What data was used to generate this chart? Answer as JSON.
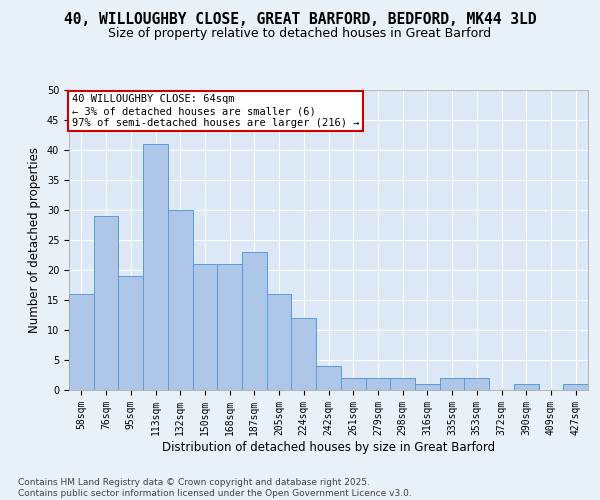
{
  "title_line1": "40, WILLOUGHBY CLOSE, GREAT BARFORD, BEDFORD, MK44 3LD",
  "title_line2": "Size of property relative to detached houses in Great Barford",
  "xlabel": "Distribution of detached houses by size in Great Barford",
  "ylabel": "Number of detached properties",
  "categories": [
    "58sqm",
    "76sqm",
    "95sqm",
    "113sqm",
    "132sqm",
    "150sqm",
    "168sqm",
    "187sqm",
    "205sqm",
    "224sqm",
    "242sqm",
    "261sqm",
    "279sqm",
    "298sqm",
    "316sqm",
    "335sqm",
    "353sqm",
    "372sqm",
    "390sqm",
    "409sqm",
    "427sqm"
  ],
  "values": [
    16,
    29,
    19,
    41,
    30,
    21,
    21,
    23,
    16,
    12,
    4,
    2,
    2,
    2,
    1,
    2,
    2,
    0,
    1,
    0,
    1
  ],
  "bar_color": "#aec6e8",
  "bar_edge_color": "#5b9bd5",
  "annotation_text": "40 WILLOUGHBY CLOSE: 64sqm\n← 3% of detached houses are smaller (6)\n97% of semi-detached houses are larger (216) →",
  "annotation_box_color": "#ffffff",
  "annotation_box_edge_color": "#cc0000",
  "ylim": [
    0,
    50
  ],
  "yticks": [
    0,
    5,
    10,
    15,
    20,
    25,
    30,
    35,
    40,
    45,
    50
  ],
  "background_color": "#e8f0f8",
  "plot_bg_color": "#dce8f5",
  "footer_text": "Contains HM Land Registry data © Crown copyright and database right 2025.\nContains public sector information licensed under the Open Government Licence v3.0.",
  "title_fontsize": 10.5,
  "subtitle_fontsize": 9,
  "axis_label_fontsize": 8.5,
  "tick_fontsize": 7,
  "annotation_fontsize": 7.5,
  "footer_fontsize": 6.5
}
